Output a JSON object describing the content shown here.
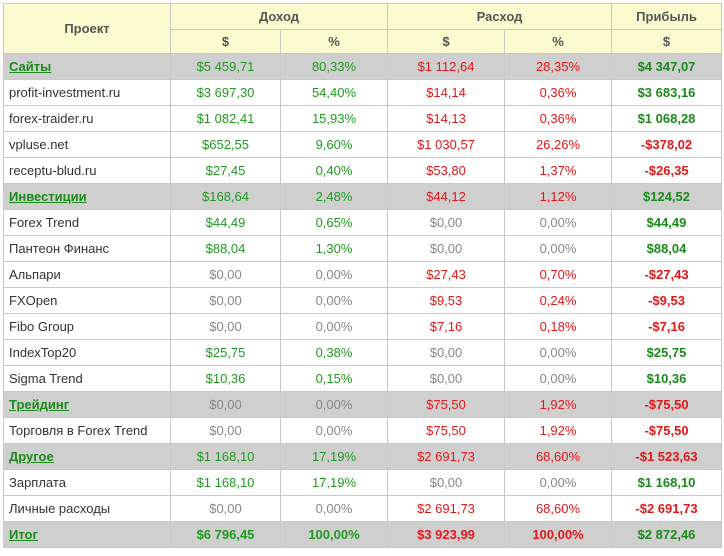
{
  "header": {
    "project": "Проект",
    "income": "Доход",
    "expense": "Расход",
    "profit": "Прибыль",
    "dollar": "$",
    "percent": "%"
  },
  "rows": [
    {
      "type": "cat",
      "name": "Сайты",
      "inc": "$5 459,71",
      "incp": "80,33%",
      "exp": "$1 112,64",
      "expp": "28,35%",
      "profit": "$4 347,07",
      "sign": "pos"
    },
    {
      "type": "item",
      "name": "profit-investment.ru",
      "inc": "$3 697,30",
      "incp": "54,40%",
      "exp": "$14,14",
      "expp": "0,36%",
      "profit": "$3 683,16",
      "sign": "pos"
    },
    {
      "type": "item",
      "name": "forex-traider.ru",
      "inc": "$1 082,41",
      "incp": "15,93%",
      "exp": "$14,13",
      "expp": "0,36%",
      "profit": "$1 068,28",
      "sign": "pos"
    },
    {
      "type": "item",
      "name": "vpluse.net",
      "inc": "$652,55",
      "incp": "9,60%",
      "exp": "$1 030,57",
      "expp": "26,26%",
      "profit": "-$378,02",
      "sign": "neg"
    },
    {
      "type": "item",
      "name": "receptu-blud.ru",
      "inc": "$27,45",
      "incp": "0,40%",
      "exp": "$53,80",
      "expp": "1,37%",
      "profit": "-$26,35",
      "sign": "neg"
    },
    {
      "type": "cat",
      "name": "Инвестиции",
      "inc": "$168,64",
      "incp": "2,48%",
      "exp": "$44,12",
      "expp": "1,12%",
      "profit": "$124,52",
      "sign": "pos"
    },
    {
      "type": "item",
      "name": "Forex Trend",
      "inc": "$44,49",
      "incp": "0,65%",
      "exp": "$0,00",
      "expp": "0,00%",
      "profit": "$44,49",
      "sign": "pos"
    },
    {
      "type": "item",
      "name": "Пантеон Финанс",
      "inc": "$88,04",
      "incp": "1,30%",
      "exp": "$0,00",
      "expp": "0,00%",
      "profit": "$88,04",
      "sign": "pos"
    },
    {
      "type": "item",
      "name": "Альпари",
      "inc": "$0,00",
      "incp": "0,00%",
      "exp": "$27,43",
      "expp": "0,70%",
      "profit": "-$27,43",
      "sign": "neg"
    },
    {
      "type": "item",
      "name": "FXOpen",
      "inc": "$0,00",
      "incp": "0,00%",
      "exp": "$9,53",
      "expp": "0,24%",
      "profit": "-$9,53",
      "sign": "neg"
    },
    {
      "type": "item",
      "name": "Fibo Group",
      "inc": "$0,00",
      "incp": "0,00%",
      "exp": "$7,16",
      "expp": "0,18%",
      "profit": "-$7,16",
      "sign": "neg"
    },
    {
      "type": "item",
      "name": "IndexTop20",
      "inc": "$25,75",
      "incp": "0,38%",
      "exp": "$0,00",
      "expp": "0,00%",
      "profit": "$25,75",
      "sign": "pos"
    },
    {
      "type": "item",
      "name": "Sigma Trend",
      "inc": "$10,36",
      "incp": "0,15%",
      "exp": "$0,00",
      "expp": "0,00%",
      "profit": "$10,36",
      "sign": "pos"
    },
    {
      "type": "cat",
      "name": "Трейдинг",
      "inc": "$0,00",
      "incp": "0,00%",
      "exp": "$75,50",
      "expp": "1,92%",
      "profit": "-$75,50",
      "sign": "neg"
    },
    {
      "type": "item",
      "name": "Торговля в Forex Trend",
      "inc": "$0,00",
      "incp": "0,00%",
      "exp": "$75,50",
      "expp": "1,92%",
      "profit": "-$75,50",
      "sign": "neg"
    },
    {
      "type": "cat",
      "name": "Другое",
      "inc": "$1 168,10",
      "incp": "17,19%",
      "exp": "$2 691,73",
      "expp": "68,60%",
      "profit": "-$1 523,63",
      "sign": "neg"
    },
    {
      "type": "item",
      "name": "Зарплата",
      "inc": "$1 168,10",
      "incp": "17,19%",
      "exp": "$0,00",
      "expp": "0,00%",
      "profit": "$1 168,10",
      "sign": "pos"
    },
    {
      "type": "item",
      "name": "Личные расходы",
      "inc": "$0,00",
      "incp": "0,00%",
      "exp": "$2 691,73",
      "expp": "68,60%",
      "profit": "-$2 691,73",
      "sign": "neg"
    },
    {
      "type": "total",
      "name": "Итог",
      "inc": "$6 796,45",
      "incp": "100,00%",
      "exp": "$3 923,99",
      "expp": "100,00%",
      "profit": "$2 872,46",
      "sign": "pos"
    }
  ]
}
